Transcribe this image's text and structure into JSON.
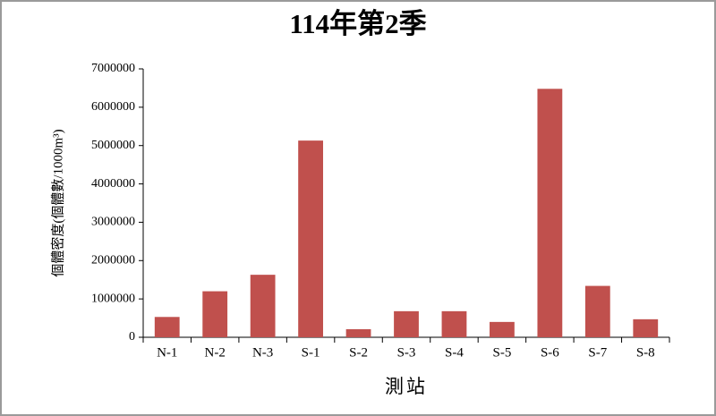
{
  "chart_data": {
    "type": "bar",
    "title": "114年第2季",
    "x_label": "測站",
    "y_label": "個體密度(個體數/1000m³)",
    "categories": [
      "N-1",
      "N-2",
      "N-3",
      "S-1",
      "S-2",
      "S-3",
      "S-4",
      "S-5",
      "S-6",
      "S-7",
      "S-8"
    ],
    "values": [
      530000,
      1200000,
      1630000,
      5130000,
      210000,
      680000,
      680000,
      400000,
      6480000,
      1340000,
      470000
    ],
    "color": "#c0504d",
    "ylim": [
      0,
      7000000
    ],
    "yticks": [
      0,
      1000000,
      2000000,
      3000000,
      4000000,
      5000000,
      6000000,
      7000000
    ],
    "grid": false
  }
}
